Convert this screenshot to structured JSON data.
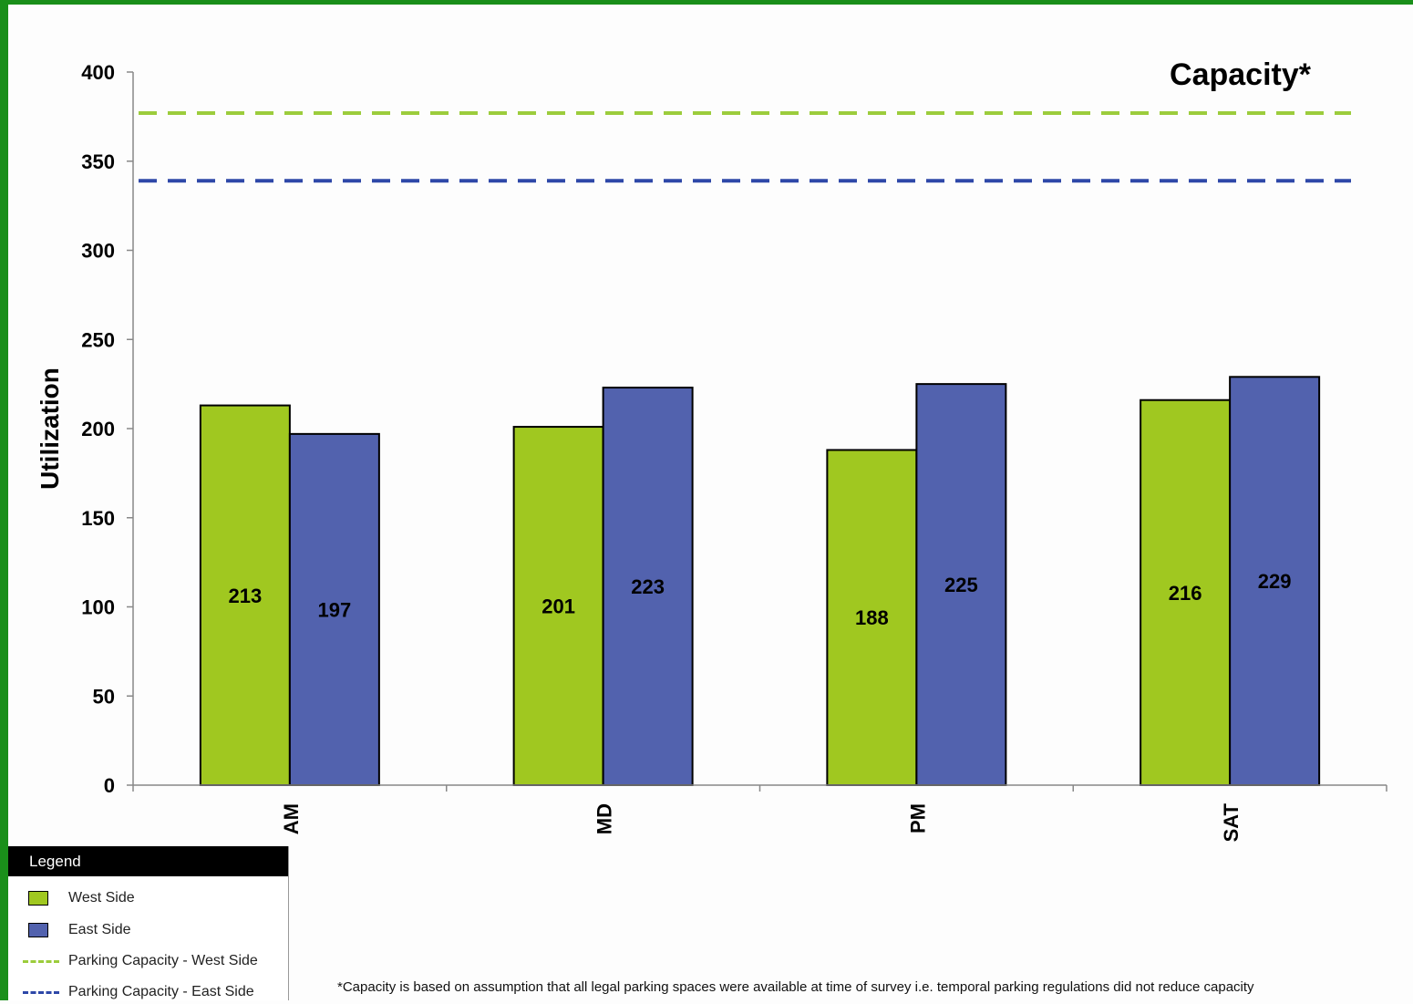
{
  "chart_data": {
    "type": "bar",
    "title": "Capacity*",
    "ylabel": "Utilization",
    "xlabel": "",
    "ylim": [
      0,
      400
    ],
    "yticks": [
      0,
      50,
      100,
      150,
      200,
      250,
      300,
      350,
      400
    ],
    "categories": [
      "AM",
      "MD",
      "PM",
      "SAT"
    ],
    "series": [
      {
        "name": "West Side",
        "color": "#a0c820",
        "values": [
          213,
          201,
          188,
          216
        ]
      },
      {
        "name": "East Side",
        "color": "#5262ae",
        "values": [
          197,
          223,
          225,
          229
        ]
      }
    ],
    "reference_lines": [
      {
        "name": "Parking Capacity - West Side",
        "color": "#9ccc3c",
        "style": "dashed",
        "value": 377
      },
      {
        "name": "Parking Capacity - East Side",
        "color": "#2e48a8",
        "style": "dashed",
        "value": 339
      }
    ],
    "data_labels": true,
    "grid": false,
    "legend_position": "bottom-left"
  },
  "legend": {
    "header": "Legend",
    "items": [
      {
        "label": "West Side",
        "kind": "swatch",
        "color": "#a0c820"
      },
      {
        "label": "East Side",
        "kind": "swatch",
        "color": "#5262ae"
      },
      {
        "label": "Parking Capacity - West Side",
        "kind": "dash",
        "color": "#9ccc3c"
      },
      {
        "label": "Parking Capacity - East Side",
        "kind": "dash",
        "color": "#2e48a8"
      }
    ]
  },
  "footnote": "*Capacity is based on assumption that all legal parking spaces were available at time of survey  i.e. temporal parking regulations did not reduce capacity"
}
